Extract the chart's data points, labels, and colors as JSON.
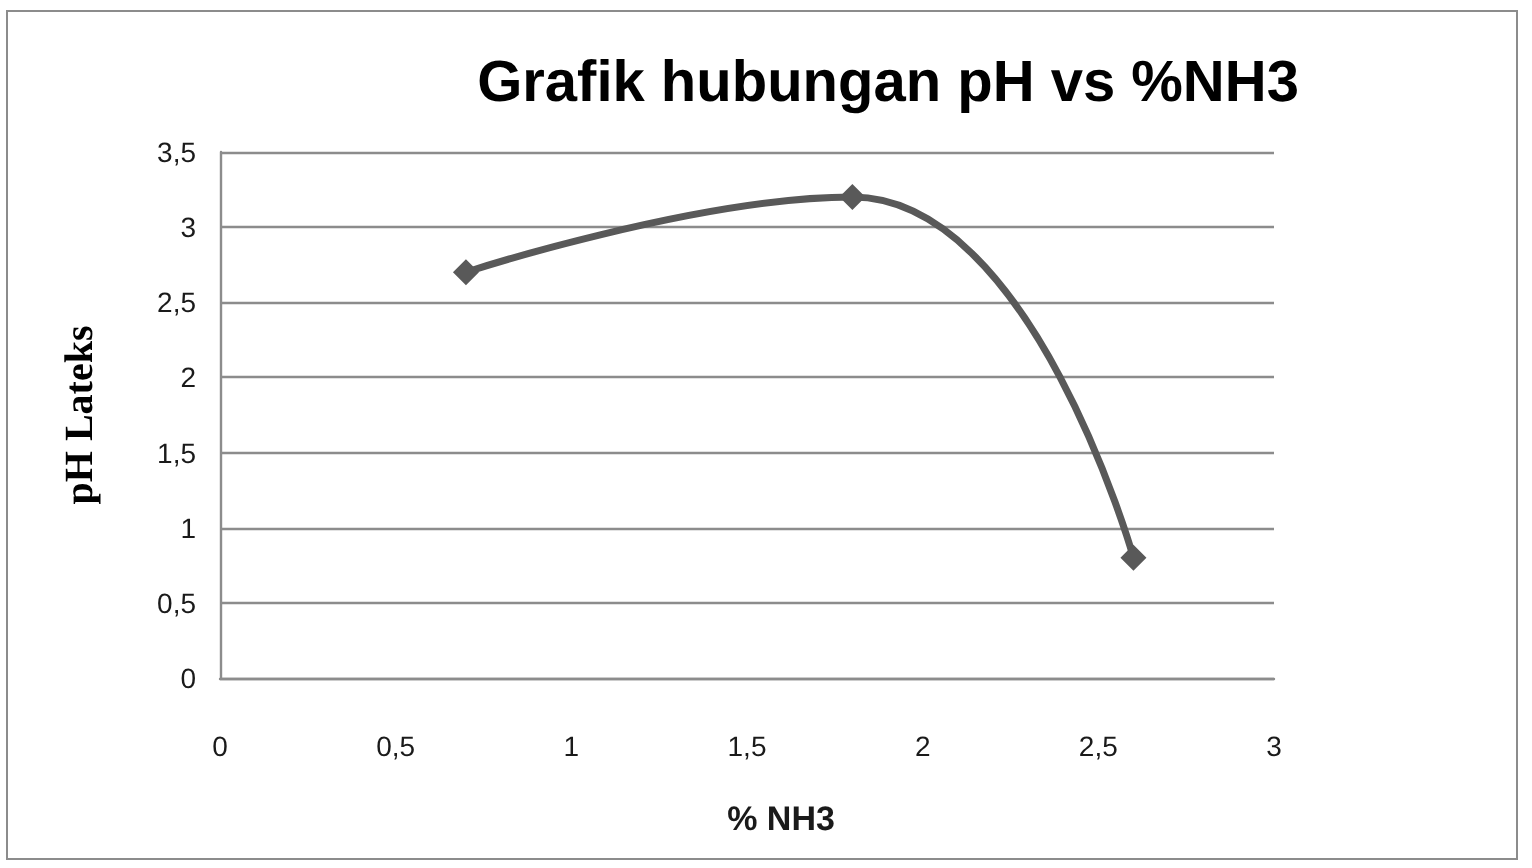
{
  "chart_data": {
    "type": "line",
    "title": "Grafik hubungan pH vs %NH3",
    "xlabel": "% NH3",
    "ylabel": "pH Lateks",
    "x": [
      0.7,
      1.8,
      2.6
    ],
    "values": [
      2.7,
      3.2,
      0.8
    ],
    "color": "#595959",
    "xlim": [
      0,
      3
    ],
    "xticks": [
      0,
      {
        "value": 0.5,
        "label": "0,5"
      },
      1,
      {
        "value": 1.5,
        "label": "1,5"
      },
      2,
      {
        "value": 2.5,
        "label": "2,5"
      },
      3
    ],
    "ylim": [
      0,
      3.5
    ],
    "yticks": [
      0,
      {
        "value": 0.5,
        "label": "0,5"
      },
      1,
      {
        "value": 1.5,
        "label": "1,5"
      },
      2,
      {
        "value": 2.5,
        "label": "2,5"
      },
      3,
      {
        "value": 3.5,
        "label": "3,5"
      }
    ],
    "grid": "y",
    "marker": "diamond",
    "line_style": "solid"
  }
}
